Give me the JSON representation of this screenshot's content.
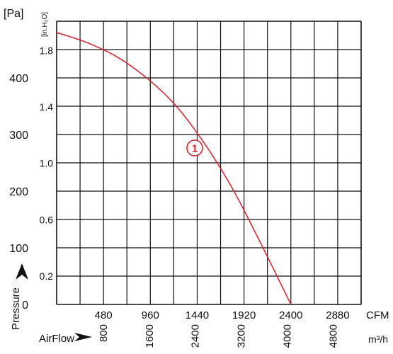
{
  "chart_data": {
    "type": "line",
    "y_unit_left": "[Pa]",
    "y_unit_inner": "[in.H₂O]",
    "x_unit_top": "CFM",
    "x_unit_bottom": "m³/h",
    "axis_label_y": "Pressure",
    "axis_label_x": "AirFlow",
    "x_range_cfm": [
      0,
      3120
    ],
    "y_range_pa": [
      0,
      500
    ],
    "x_ticks_cfm": [
      "480",
      "960",
      "1440",
      "1920",
      "2400",
      "2880"
    ],
    "x_ticks_m3h": [
      "800",
      "1600",
      "2400",
      "3200",
      "4000",
      "4800"
    ],
    "y_ticks_pa": [
      "0",
      "100",
      "200",
      "300",
      "400"
    ],
    "y_ticks_inh2o": [
      "0.2",
      "0.6",
      "1.0",
      "1.4",
      "1.8"
    ],
    "grid": true,
    "series": [
      {
        "label": "1",
        "color": "#d7202a",
        "x": [
          0,
          300,
          600,
          900,
          1200,
          1500,
          1800,
          2100,
          2400
        ],
        "y": [
          480,
          463,
          439,
          403,
          355,
          288,
          205,
          105,
          0
        ]
      }
    ],
    "marker": {
      "label": "1",
      "x": 1560,
      "y": 270
    }
  }
}
